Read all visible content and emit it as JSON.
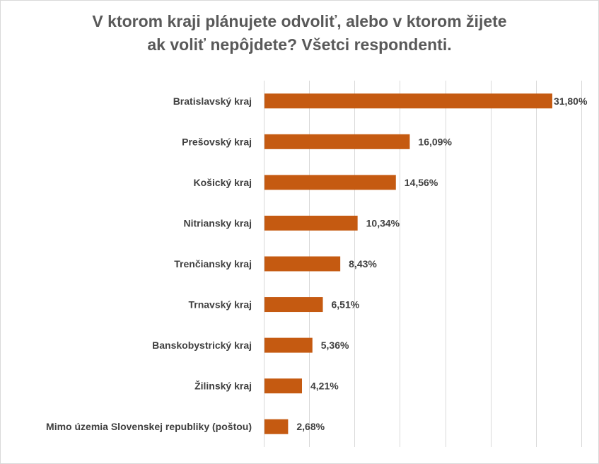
{
  "chart_data": {
    "type": "bar",
    "orientation": "horizontal",
    "title_line1": "V ktorom kraji  plánujete odvoliť, alebo v ktorom žijete",
    "title_line2": "ak voliť nepôjdete? Všetci respondenti.",
    "categories": [
      "Bratislavský kraj",
      "Prešovský kraj",
      "Košický kraj",
      "Nitriansky kraj",
      "Trenčiansky kraj",
      "Trnavský kraj",
      "Banskobystrický kraj",
      "Žilinský kraj",
      "Mimo územia Slovenskej republiky (poštou)"
    ],
    "values": [
      31.8,
      16.09,
      14.56,
      10.34,
      8.43,
      6.51,
      5.36,
      4.21,
      2.68
    ],
    "value_labels": [
      "31,80%",
      "16,09%",
      "14,56%",
      "10,34%",
      "8,43%",
      "6,51%",
      "5,36%",
      "4,21%",
      "2,68%"
    ],
    "xlim": [
      0,
      35
    ],
    "grid": true,
    "bar_color": "#c55a11",
    "legend": "none"
  }
}
